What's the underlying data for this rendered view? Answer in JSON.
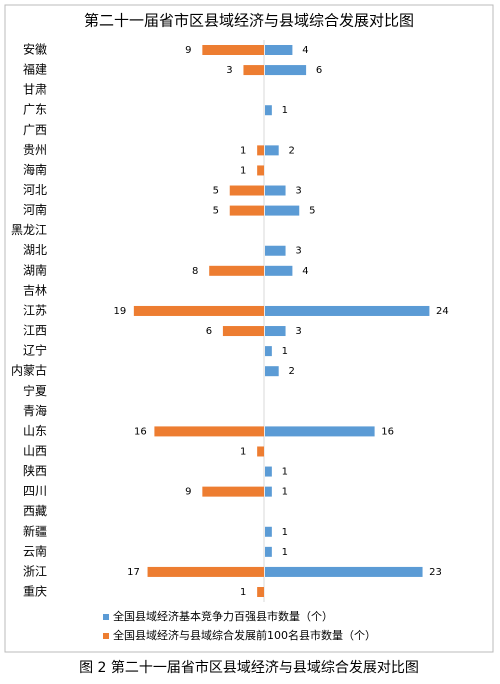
{
  "chart_data": {
    "type": "bar",
    "title": "第二十一届省市区县域经济与县域综合发展对比图",
    "caption": "图 2 第二十一届省市区县域经济与县域综合发展对比图",
    "categories": [
      "安徽",
      "福建",
      "甘肃",
      "广东",
      "广西",
      "贵州",
      "海南",
      "河北",
      "河南",
      "黑龙江",
      "湖北",
      "湖南",
      "吉林",
      "江苏",
      "江西",
      "辽宁",
      "内蒙古",
      "宁夏",
      "青海",
      "山东",
      "山西",
      "陕西",
      "四川",
      "西藏",
      "新疆",
      "云南",
      "浙江",
      "重庆"
    ],
    "series": [
      {
        "name": "全国县域经济基本竞争力百强县市数量（个）",
        "color": "#5b9bd5",
        "values": [
          4,
          6,
          null,
          1,
          null,
          2,
          null,
          3,
          5,
          null,
          3,
          4,
          null,
          24,
          3,
          1,
          2,
          null,
          null,
          16,
          null,
          1,
          1,
          null,
          1,
          1,
          23,
          null
        ]
      },
      {
        "name": "全国县域经济与县域综合发展前100名县市数量（个）",
        "color": "#ed7d31",
        "values": [
          9,
          3,
          null,
          null,
          null,
          1,
          1,
          5,
          5,
          null,
          null,
          8,
          null,
          19,
          6,
          null,
          null,
          null,
          null,
          16,
          1,
          null,
          9,
          null,
          null,
          null,
          17,
          1
        ]
      }
    ]
  }
}
